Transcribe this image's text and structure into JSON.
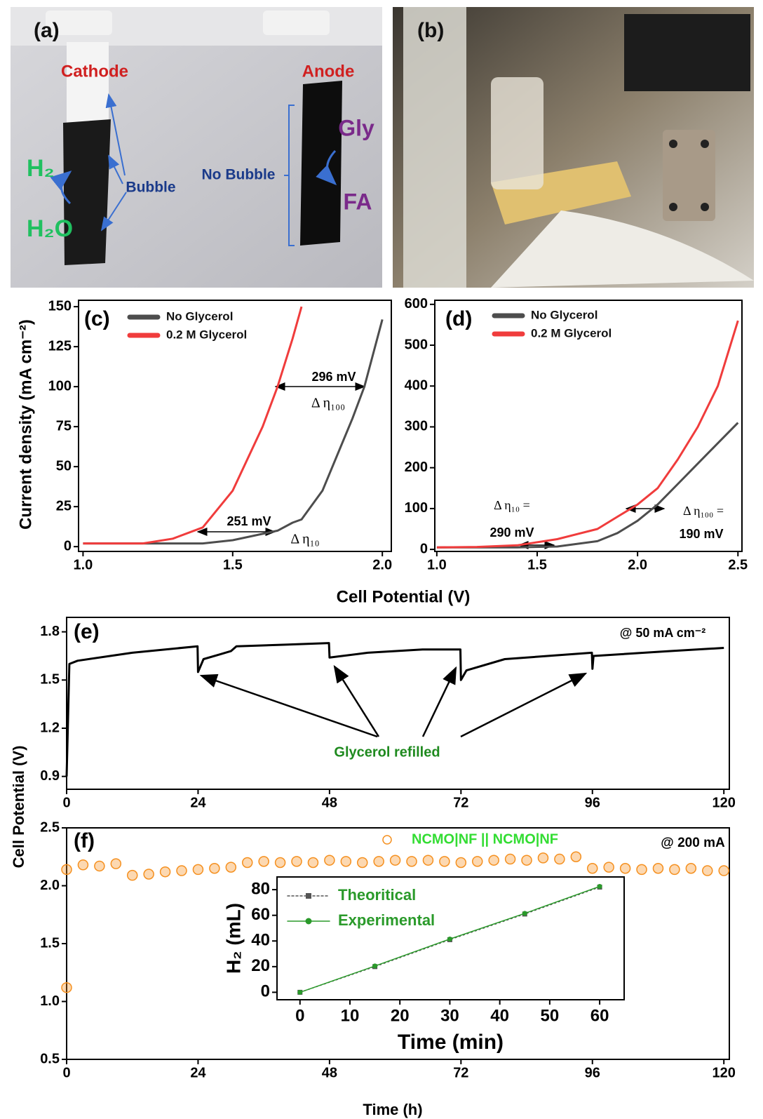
{
  "photos": {
    "a": {
      "panel_label": "(a)",
      "cathode": "Cathode",
      "anode": "Anode",
      "h2": "H₂",
      "h2o": "H₂O",
      "bubble": "Bubble",
      "no_bubble": "No Bubble",
      "gly": "Gly",
      "fa": "FA"
    },
    "b": {
      "panel_label": "(b)"
    }
  },
  "shared_labels": {
    "cd_xlabel": "Cell Potential (V)",
    "cd_ylabel": "Current density (mA cm⁻²)",
    "ef_xlabel": "Time (h)",
    "ef_ylabel": "Cell Potential (V)"
  },
  "chart_data": [
    {
      "type": "line",
      "panel_label": "(c)",
      "x": [
        1.0,
        1.1,
        1.2,
        1.3,
        1.4,
        1.5,
        1.6,
        1.65,
        1.7,
        1.73,
        1.8,
        1.9,
        1.94,
        2.0
      ],
      "series": [
        {
          "name": "No Glycerol",
          "color": "#4d4d4d",
          "values": [
            2,
            2,
            2,
            2,
            2,
            4,
            8,
            10,
            15,
            17,
            35,
            80,
            100,
            142
          ]
        },
        {
          "name": "0.2 M Glycerol",
          "color": "#f03c3c",
          "values": [
            2,
            2,
            2,
            5,
            12,
            35,
            75,
            100,
            130,
            150,
            null,
            null,
            null,
            null
          ]
        }
      ],
      "xlim": [
        0.985,
        2.03
      ],
      "ylim": [
        -3,
        154
      ],
      "xticks": [
        {
          "value": 1,
          "label": "1.0"
        },
        1.5,
        {
          "value": 2,
          "label": "2.0"
        }
      ],
      "yticks": [
        0,
        25,
        50,
        75,
        100,
        125,
        150
      ],
      "annotations": [
        "296 mV",
        "Δ η₁₀₀",
        "251 mV",
        "Δ η₁₀"
      ]
    },
    {
      "type": "line",
      "panel_label": "(d)",
      "x": [
        1.0,
        1.2,
        1.4,
        1.6,
        1.8,
        1.9,
        2.0,
        2.1,
        2.2,
        2.3,
        2.4,
        2.5
      ],
      "series": [
        {
          "name": "No Glycerol",
          "color": "#4d4d4d",
          "values": [
            5,
            5,
            5,
            7,
            20,
            40,
            70,
            110,
            160,
            210,
            260,
            310
          ]
        },
        {
          "name": "0.2 M Glycerol",
          "color": "#f03c3c",
          "values": [
            5,
            6,
            10,
            25,
            50,
            80,
            110,
            150,
            220,
            300,
            400,
            560
          ]
        }
      ],
      "xlim": [
        0.99,
        2.52
      ],
      "ylim": [
        -5,
        610
      ],
      "xticks": [
        {
          "value": 1,
          "label": "1.0"
        },
        1.5,
        {
          "value": 2,
          "label": "2.0"
        },
        2.5
      ],
      "yticks": [
        0,
        100,
        200,
        300,
        400,
        500,
        600
      ],
      "annotations": [
        "Δ η₁₀ =",
        "290 mV",
        "Δ η₁₀₀ =",
        "190 mV"
      ]
    },
    {
      "type": "line",
      "panel_label": "(e)",
      "x": [
        0,
        0.5,
        2,
        12,
        23.9,
        24,
        25,
        28,
        30,
        31,
        40,
        47.9,
        48,
        55,
        65,
        71.9,
        72,
        73,
        80,
        95.9,
        96,
        96.2,
        110,
        120
      ],
      "series": [
        {
          "color": "#000000",
          "values": [
            0.9,
            1.6,
            1.62,
            1.67,
            1.71,
            1.55,
            1.63,
            1.66,
            1.68,
            1.71,
            1.72,
            1.73,
            1.64,
            1.67,
            1.69,
            1.69,
            1.5,
            1.56,
            1.63,
            1.67,
            1.57,
            1.65,
            1.68,
            1.7
          ]
        }
      ],
      "xlim": [
        0,
        121
      ],
      "ylim": [
        0.82,
        1.89
      ],
      "xticks": [
        0,
        24,
        48,
        72,
        96,
        120
      ],
      "yticks": [
        0.9,
        1.2,
        1.5,
        1.8
      ],
      "annotations": [
        "@ 50 mA cm⁻²",
        "Glycerol refilled"
      ]
    },
    {
      "type": "scatter",
      "panel_label": "(f)",
      "x": [
        0,
        0,
        3,
        6,
        9,
        12,
        15,
        18,
        21,
        24,
        27,
        30,
        33,
        36,
        39,
        42,
        45,
        48,
        51,
        54,
        57,
        60,
        63,
        66,
        69,
        72,
        75,
        78,
        81,
        84,
        87,
        90,
        93,
        96,
        99,
        102,
        105,
        108,
        111,
        114,
        117,
        120
      ],
      "series": [
        {
          "name": "NCMO|NF || NCMO|NF",
          "color": "#f5901f",
          "values": [
            1.12,
            2.14,
            2.18,
            2.17,
            2.19,
            2.09,
            2.1,
            2.12,
            2.13,
            2.14,
            2.15,
            2.16,
            2.2,
            2.21,
            2.2,
            2.21,
            2.2,
            2.22,
            2.21,
            2.2,
            2.21,
            2.22,
            2.21,
            2.22,
            2.21,
            2.2,
            2.21,
            2.22,
            2.23,
            2.22,
            2.24,
            2.23,
            2.25,
            2.15,
            2.16,
            2.15,
            2.14,
            2.15,
            2.14,
            2.15,
            2.13,
            2.13
          ]
        }
      ],
      "legend_text_color": "#33dd33",
      "xlim": [
        0,
        121
      ],
      "ylim": [
        0.5,
        2.5
      ],
      "xticks": [
        0,
        24,
        48,
        72,
        96,
        120
      ],
      "yticks": [
        0.5,
        {
          "value": 1,
          "label": "1.0"
        },
        1.5,
        {
          "value": 2,
          "label": "2.0"
        },
        2.5
      ],
      "annotations": [
        "@ 200 mA"
      ]
    },
    {
      "type": "line",
      "xlabel": "Time (min)",
      "ylabel": "H₂ (mL)",
      "x": [
        0,
        15,
        30,
        45,
        60
      ],
      "series": [
        {
          "name": "Theoritical",
          "color": "#555555",
          "marker": "square",
          "dashed": true,
          "values": [
            0,
            20,
            41,
            61,
            82
          ]
        },
        {
          "name": "Experimental",
          "color": "#2a9a2a",
          "marker": "circle",
          "values": [
            0,
            20.5,
            41.5,
            61.5,
            82.5
          ]
        }
      ],
      "legend_text_color": "#2a9a2a",
      "xlim": [
        -4.6,
        64.9
      ],
      "ylim": [
        -5.8,
        89.9
      ],
      "xticks": [
        0,
        10,
        20,
        30,
        40,
        50,
        60
      ],
      "yticks": [
        0,
        20,
        40,
        60,
        80
      ]
    }
  ]
}
